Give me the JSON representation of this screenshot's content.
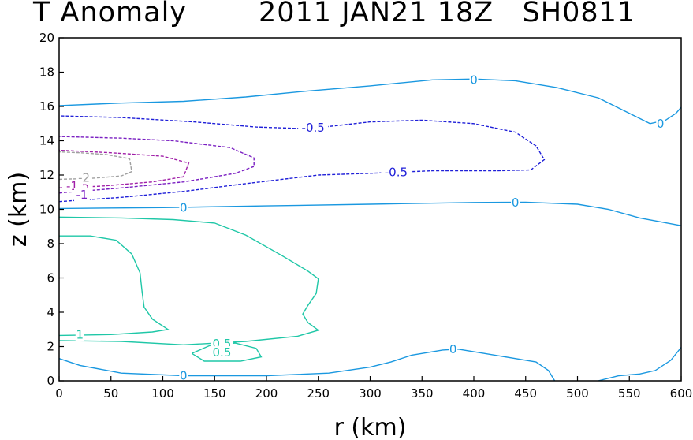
{
  "title": {
    "left": "T Anomaly",
    "right": "2011 JAN21 18Z   SH0811"
  },
  "chart_data": {
    "type": "contour",
    "title": "T Anomaly",
    "subtitle": "2011 JAN21 18Z   SH0811",
    "xlabel": "r  (km)",
    "ylabel": "z (km)",
    "xlim": [
      0,
      600
    ],
    "ylim": [
      0,
      20
    ],
    "x_ticks": [
      0,
      50,
      100,
      150,
      200,
      250,
      300,
      350,
      400,
      450,
      500,
      550,
      600
    ],
    "y_ticks": [
      0,
      2,
      4,
      6,
      8,
      10,
      12,
      14,
      16,
      18,
      20
    ],
    "grid": false,
    "series": [
      {
        "name": "0",
        "level": 0,
        "color": "#1a98e0",
        "dash": "solid",
        "points": [
          [
            0,
            1.3
          ],
          [
            20,
            0.9
          ],
          [
            60,
            0.45
          ],
          [
            120,
            0.3
          ],
          [
            200,
            0.3
          ],
          [
            260,
            0.45
          ],
          [
            300,
            0.8
          ],
          [
            320,
            1.1
          ],
          [
            340,
            1.5
          ],
          [
            370,
            1.8
          ],
          [
            385,
            1.85
          ],
          [
            410,
            1.6
          ],
          [
            440,
            1.3
          ],
          [
            460,
            1.1
          ],
          [
            472,
            0.6
          ],
          [
            478,
            0
          ]
        ]
      },
      {
        "name": "0",
        "level": 0,
        "color": "#1a98e0",
        "dash": "solid",
        "points": [
          [
            520,
            0
          ],
          [
            540,
            0.3
          ],
          [
            560,
            0.4
          ],
          [
            575,
            0.6
          ],
          [
            590,
            1.2
          ],
          [
            600,
            1.95
          ]
        ]
      },
      {
        "name": "0",
        "level": 0,
        "color": "#1a98e0",
        "dash": "solid",
        "points": [
          [
            0,
            10.05
          ],
          [
            100,
            10.1
          ],
          [
            200,
            10.2
          ],
          [
            300,
            10.3
          ],
          [
            400,
            10.4
          ],
          [
            450,
            10.42
          ],
          [
            500,
            10.3
          ],
          [
            530,
            10.0
          ],
          [
            560,
            9.5
          ],
          [
            600,
            9.05
          ]
        ]
      },
      {
        "name": "0",
        "level": 0,
        "color": "#1a98e0",
        "dash": "solid",
        "points": [
          [
            0,
            16.05
          ],
          [
            60,
            16.2
          ],
          [
            120,
            16.3
          ],
          [
            180,
            16.55
          ],
          [
            240,
            16.9
          ],
          [
            300,
            17.2
          ],
          [
            360,
            17.55
          ],
          [
            400,
            17.6
          ],
          [
            440,
            17.5
          ],
          [
            480,
            17.1
          ],
          [
            520,
            16.5
          ],
          [
            550,
            15.6
          ],
          [
            570,
            15.0
          ],
          [
            585,
            15.2
          ],
          [
            595,
            15.6
          ],
          [
            600,
            15.95
          ]
        ]
      },
      {
        "name": "0.5",
        "level": 0.5,
        "color": "#1fc7a7",
        "dash": "solid",
        "points": [
          [
            0,
            2.35
          ],
          [
            60,
            2.3
          ],
          [
            120,
            2.1
          ],
          [
            180,
            2.3
          ],
          [
            230,
            2.6
          ],
          [
            250,
            2.95
          ],
          [
            240,
            3.4
          ],
          [
            235,
            3.9
          ],
          [
            240,
            4.4
          ],
          [
            248,
            5.1
          ],
          [
            250,
            5.95
          ],
          [
            240,
            6.4
          ],
          [
            215,
            7.3
          ],
          [
            180,
            8.5
          ],
          [
            150,
            9.2
          ],
          [
            110,
            9.4
          ],
          [
            60,
            9.5
          ],
          [
            0,
            9.55
          ]
        ]
      },
      {
        "name": "0.5",
        "level": 0.5,
        "color": "#1fc7a7",
        "dash": "solid",
        "points": [
          [
            128,
            1.6
          ],
          [
            145,
            2.05
          ],
          [
            170,
            2.2
          ],
          [
            190,
            1.9
          ],
          [
            195,
            1.4
          ],
          [
            175,
            1.15
          ],
          [
            140,
            1.15
          ],
          [
            128,
            1.6
          ]
        ]
      },
      {
        "name": "1",
        "level": 1,
        "color": "#1fc7a7",
        "dash": "solid",
        "points": [
          [
            0,
            2.65
          ],
          [
            50,
            2.7
          ],
          [
            90,
            2.85
          ],
          [
            105,
            3.0
          ],
          [
            90,
            3.6
          ],
          [
            82,
            4.3
          ],
          [
            80,
            5.2
          ],
          [
            78,
            6.3
          ],
          [
            70,
            7.4
          ],
          [
            55,
            8.2
          ],
          [
            30,
            8.45
          ],
          [
            0,
            8.45
          ]
        ]
      },
      {
        "name": "-0.5",
        "level": -0.5,
        "color": "#1f1fd8",
        "dash": "dashed",
        "points": [
          [
            0,
            10.45
          ],
          [
            60,
            10.7
          ],
          [
            120,
            11.05
          ],
          [
            180,
            11.5
          ],
          [
            250,
            12.0
          ],
          [
            300,
            12.1
          ],
          [
            360,
            12.25
          ],
          [
            420,
            12.25
          ],
          [
            455,
            12.3
          ],
          [
            468,
            12.9
          ],
          [
            460,
            13.7
          ],
          [
            440,
            14.5
          ],
          [
            400,
            15.0
          ],
          [
            350,
            15.2
          ],
          [
            300,
            15.1
          ],
          [
            240,
            14.7
          ],
          [
            190,
            14.8
          ],
          [
            130,
            15.1
          ],
          [
            60,
            15.35
          ],
          [
            0,
            15.45
          ]
        ]
      },
      {
        "name": "-1",
        "level": -1,
        "color": "#7a1fc2",
        "dash": "dashed",
        "points": [
          [
            0,
            10.95
          ],
          [
            60,
            11.25
          ],
          [
            120,
            11.6
          ],
          [
            170,
            12.1
          ],
          [
            188,
            12.5
          ],
          [
            188,
            13.0
          ],
          [
            165,
            13.6
          ],
          [
            110,
            14.0
          ],
          [
            60,
            14.15
          ],
          [
            0,
            14.25
          ]
        ]
      },
      {
        "name": "-1.5",
        "level": -1.5,
        "color": "#a01fa8",
        "dash": "dashed",
        "points": [
          [
            0,
            11.25
          ],
          [
            40,
            11.35
          ],
          [
            90,
            11.6
          ],
          [
            120,
            11.9
          ],
          [
            125,
            12.7
          ],
          [
            100,
            13.1
          ],
          [
            50,
            13.3
          ],
          [
            0,
            13.45
          ]
        ]
      },
      {
        "name": "-2",
        "level": -2,
        "color": "#a0a0a0",
        "dash": "dashed",
        "points": [
          [
            0,
            11.75
          ],
          [
            30,
            11.8
          ],
          [
            60,
            11.95
          ],
          [
            70,
            12.2
          ],
          [
            68,
            12.95
          ],
          [
            45,
            13.2
          ],
          [
            20,
            13.3
          ],
          [
            0,
            13.35
          ]
        ]
      }
    ],
    "contour_labels": [
      {
        "text": "0",
        "x": 400,
        "y": 17.55,
        "color": "#1a98e0"
      },
      {
        "text": "0",
        "x": 580,
        "y": 15.0,
        "color": "#1a98e0"
      },
      {
        "text": "0",
        "x": 120,
        "y": 10.1,
        "color": "#1a98e0"
      },
      {
        "text": "0",
        "x": 440,
        "y": 10.4,
        "color": "#1a98e0"
      },
      {
        "text": "0",
        "x": 380,
        "y": 1.85,
        "color": "#1a98e0"
      },
      {
        "text": "0",
        "x": 120,
        "y": 0.3,
        "color": "#1a98e0"
      },
      {
        "text": "-0.5",
        "x": 245,
        "y": 14.75,
        "color": "#1f1fd8"
      },
      {
        "text": "-0.5",
        "x": 325,
        "y": 12.15,
        "color": "#1f1fd8"
      },
      {
        "text": "0.5",
        "x": 157,
        "y": 2.15,
        "color": "#1fc7a7"
      },
      {
        "text": "0.5",
        "x": 157,
        "y": 1.65,
        "color": "#1fc7a7"
      },
      {
        "text": "1",
        "x": 20,
        "y": 2.7,
        "color": "#1fc7a7"
      },
      {
        "text": "-1.5",
        "x": 18,
        "y": 11.35,
        "color": "#a01fa8"
      },
      {
        "text": "-1",
        "x": 22,
        "y": 10.85,
        "color": "#7a1fc2"
      },
      {
        "text": "-2",
        "x": 24,
        "y": 11.85,
        "color": "#a0a0a0"
      }
    ]
  }
}
